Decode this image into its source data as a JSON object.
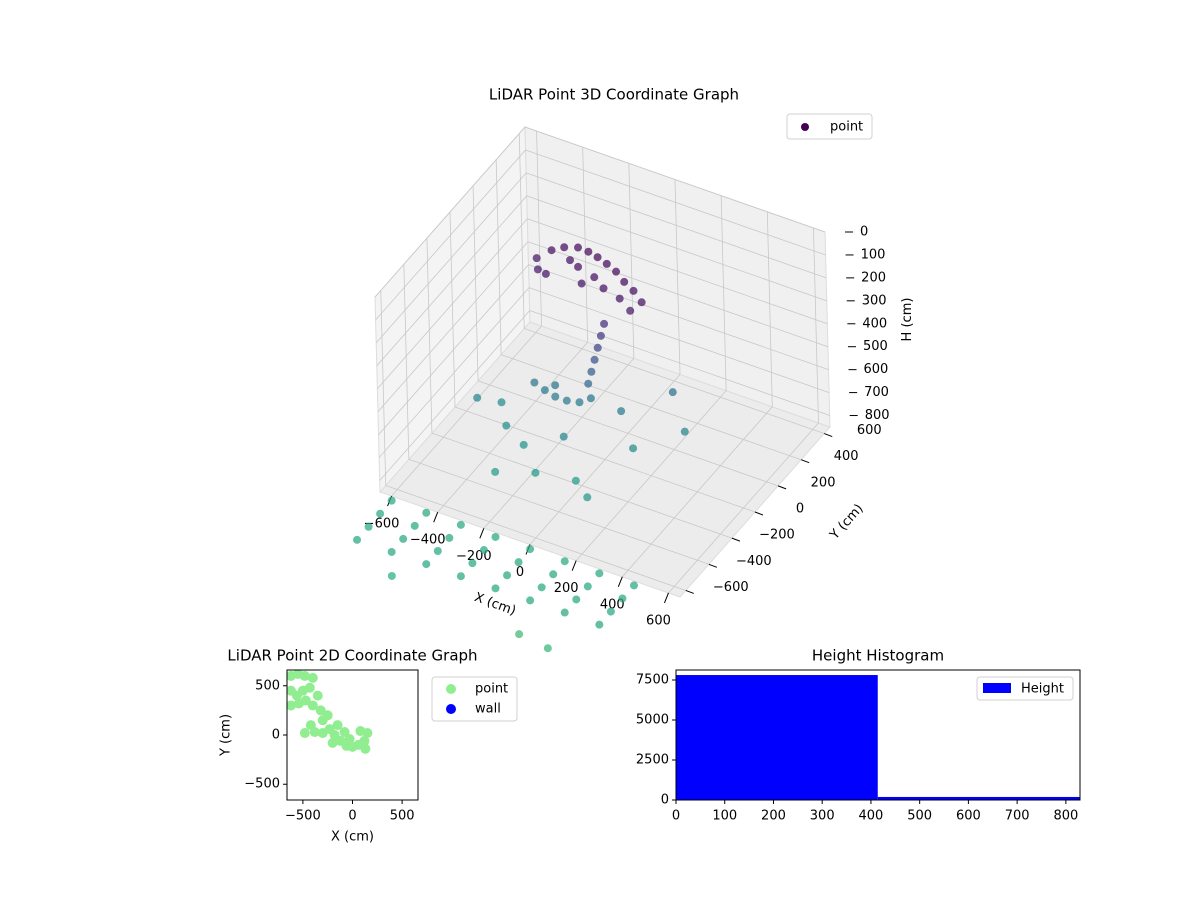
{
  "chart_data": [
    {
      "type": "scatter3d",
      "title": "LiDAR Point 3D Coordinate Graph",
      "xlabel": "X (cm)",
      "ylabel": "Y (cm)",
      "zlabel": "H (cm)",
      "xlim": [
        -650,
        650
      ],
      "ylim": [
        -650,
        650
      ],
      "zlim": [
        0,
        850
      ],
      "z_inverted": true,
      "xticks": [
        {
          "value": -600,
          "label": "−600"
        },
        {
          "value": -400,
          "label": "−400"
        },
        {
          "value": -200,
          "label": "−200"
        },
        0,
        200,
        400,
        600
      ],
      "yticks": [
        {
          "value": -600,
          "label": "−600"
        },
        {
          "value": -400,
          "label": "−400"
        },
        {
          "value": -200,
          "label": "−200"
        },
        0,
        200,
        400,
        600
      ],
      "zticks": [
        0,
        100,
        200,
        300,
        400,
        500,
        600,
        700,
        800
      ],
      "colormap": "viridis",
      "clim": [
        150,
        1350
      ],
      "grid": true,
      "legend": "upper right",
      "series": [
        {
          "name": "point",
          "x": [
            -380,
            -340,
            -300,
            -250,
            -200,
            -150,
            -100,
            -50,
            0,
            50,
            100,
            -350,
            -300,
            -200,
            -120,
            -60,
            20,
            -250,
            -150,
            80,
            -20,
            -30,
            -40,
            -50,
            -60,
            -70,
            -300,
            -250,
            -200,
            -150,
            -100,
            -60,
            -220,
            -500,
            -420,
            -350,
            -250,
            -100,
            50,
            150,
            300,
            -150,
            0,
            100,
            -300,
            200,
            -600,
            -450,
            -300,
            -150,
            0,
            150,
            300,
            450,
            -600,
            -450,
            -300,
            -150,
            0,
            150,
            300,
            450,
            -600,
            -450,
            -300,
            -150,
            0,
            150,
            300,
            450,
            -600,
            -450,
            -300,
            -150,
            0,
            150,
            300,
            450,
            -400,
            150,
            300
          ],
          "y": [
            200,
            250,
            280,
            300,
            290,
            270,
            250,
            230,
            200,
            180,
            150,
            150,
            120,
            200,
            180,
            140,
            120,
            230,
            130,
            90,
            60,
            50,
            40,
            30,
            20,
            10,
            0,
            -10,
            -20,
            -20,
            -10,
            10,
            20,
            -100,
            -50,
            -150,
            -200,
            -150,
            50,
            -50,
            100,
            -300,
            -250,
            -350,
            -350,
            200,
            -950,
            -950,
            -950,
            -950,
            -950,
            -950,
            -950,
            -950,
            -850,
            -850,
            -850,
            -850,
            -850,
            -850,
            -850,
            -850,
            -750,
            -750,
            -750,
            -750,
            -750,
            -750,
            -750,
            -750,
            -650,
            -650,
            -650,
            -650,
            -650,
            -650,
            -650,
            -650,
            -1050,
            -1050,
            -1100
          ],
          "z": [
            220,
            200,
            190,
            185,
            180,
            175,
            175,
            180,
            190,
            200,
            215,
            230,
            215,
            195,
            200,
            205,
            210,
            200,
            210,
            225,
            300,
            350,
            400,
            450,
            500,
            550,
            620,
            630,
            635,
            635,
            630,
            610,
            615,
            700,
            720,
            740,
            760,
            700,
            650,
            720,
            680,
            790,
            800,
            780,
            810,
            600,
            870,
            870,
            870,
            870,
            870,
            870,
            870,
            870,
            870,
            870,
            870,
            870,
            870,
            870,
            870,
            870,
            870,
            870,
            870,
            870,
            870,
            870,
            870,
            870,
            870,
            870,
            870,
            870,
            870,
            870,
            870,
            870,
            900,
            960,
            940
          ]
        }
      ]
    },
    {
      "type": "scatter",
      "title": "LiDAR Point 2D Coordinate Graph",
      "xlabel": "X (cm)",
      "ylabel": "Y (cm)",
      "xlim": [
        -660,
        660
      ],
      "ylim": [
        -660,
        660
      ],
      "xticks": [
        {
          "value": -500,
          "label": "−500"
        },
        0,
        500
      ],
      "yticks": [
        {
          "value": -500,
          "label": "−500"
        },
        0,
        500
      ],
      "legend": "outside upper right",
      "series": [
        {
          "name": "point",
          "color": "#90ee90",
          "x": [
            -620,
            -550,
            -480,
            -400,
            -620,
            -560,
            -500,
            -430,
            -620,
            -540,
            -470,
            -400,
            -350,
            -320,
            -300,
            -250,
            -420,
            -380,
            -300,
            -230,
            -180,
            -120,
            -60,
            0,
            60,
            120,
            150,
            130,
            -80,
            -150,
            -30,
            80,
            -480,
            -200
          ],
          "y": [
            600,
            620,
            600,
            580,
            450,
            400,
            450,
            480,
            300,
            320,
            350,
            300,
            400,
            250,
            150,
            200,
            100,
            30,
            20,
            60,
            0,
            -60,
            -110,
            -120,
            -100,
            -60,
            20,
            -140,
            30,
            100,
            -40,
            40,
            20,
            -80
          ]
        },
        {
          "name": "wall",
          "color": "#0000ff",
          "x": [],
          "y": []
        }
      ]
    },
    {
      "type": "histogram",
      "title": "Height Histogram",
      "bins": [
        0,
        414,
        829
      ],
      "xlim": [
        0,
        829
      ],
      "ylim": [
        0,
        8125
      ],
      "xticks": [
        0,
        100,
        200,
        300,
        400,
        500,
        600,
        700,
        800
      ],
      "yticks": [
        0,
        2500,
        5000,
        7500
      ],
      "legend": "upper right",
      "series": [
        {
          "name": "Height",
          "color": "#0000ff",
          "values": [
            7810,
            190
          ]
        }
      ]
    }
  ]
}
